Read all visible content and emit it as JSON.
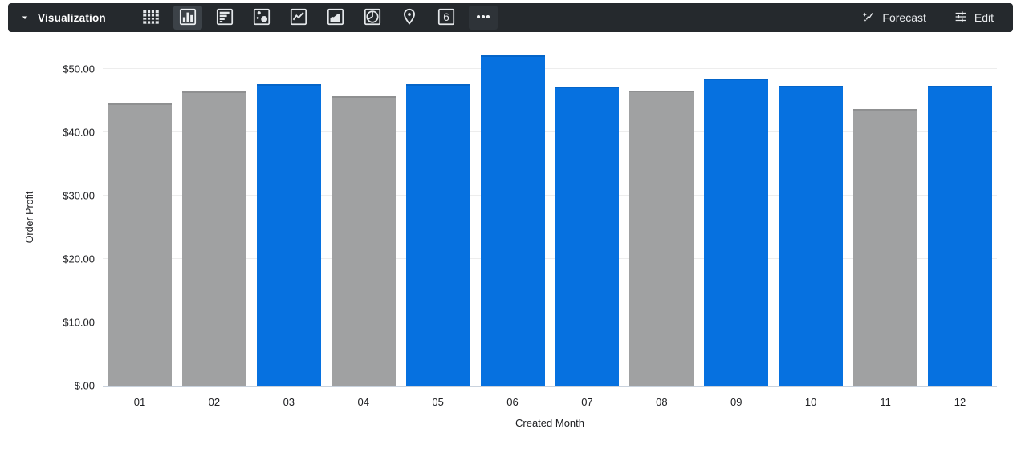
{
  "toolbar": {
    "title": "Visualization",
    "chart_types": [
      {
        "name": "table",
        "selected": false
      },
      {
        "name": "column",
        "selected": true
      },
      {
        "name": "bar",
        "selected": false
      },
      {
        "name": "scatter",
        "selected": false
      },
      {
        "name": "line",
        "selected": false
      },
      {
        "name": "area",
        "selected": false
      },
      {
        "name": "pie",
        "selected": false
      },
      {
        "name": "map",
        "selected": false
      },
      {
        "name": "single-value",
        "selected": false
      },
      {
        "name": "more",
        "selected": false
      }
    ],
    "single_value_glyph": "6",
    "forecast_label": "Forecast",
    "edit_label": "Edit"
  },
  "chart_data": {
    "type": "bar",
    "title": "",
    "xlabel": "Created Month",
    "ylabel": "Order Profit",
    "categories": [
      "01",
      "02",
      "03",
      "04",
      "05",
      "06",
      "07",
      "08",
      "09",
      "10",
      "11",
      "12"
    ],
    "values": [
      44.5,
      46.4,
      47.6,
      45.6,
      47.6,
      52.1,
      47.2,
      46.6,
      48.5,
      47.3,
      43.6,
      47.3
    ],
    "bar_colors": [
      "gray",
      "gray",
      "blue",
      "gray",
      "blue",
      "blue",
      "blue",
      "gray",
      "blue",
      "blue",
      "gray",
      "blue"
    ],
    "palette": {
      "blue": "#0671E0",
      "gray": "#A0A1A2"
    },
    "y_ticks": [
      {
        "label": "$50.00",
        "value": 50
      },
      {
        "label": "$40.00",
        "value": 40
      },
      {
        "label": "$30.00",
        "value": 30
      },
      {
        "label": "$20.00",
        "value": 20
      },
      {
        "label": "$10.00",
        "value": 10
      },
      {
        "label": "$.00",
        "value": 0
      }
    ],
    "ylim": [
      0,
      53.5
    ],
    "grid": true,
    "legend": "none"
  }
}
